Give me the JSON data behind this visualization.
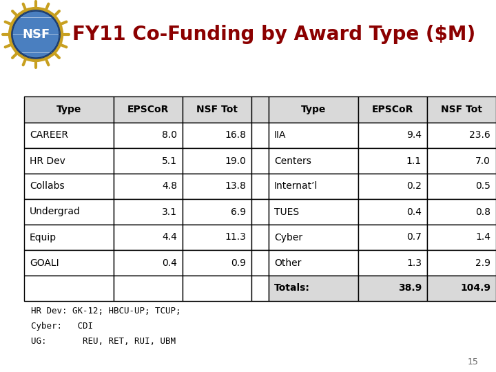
{
  "title": "FY11 Co-Funding by Award Type ($M)",
  "title_color": "#8B0000",
  "background_color": "#FFFFFF",
  "left_table": {
    "headers": [
      "Type",
      "EPSCoR",
      "NSF Tot"
    ],
    "rows": [
      [
        "CAREER",
        "8.0",
        "16.8"
      ],
      [
        "HR Dev",
        "5.1",
        "19.0"
      ],
      [
        "Collabs",
        "4.8",
        "13.8"
      ],
      [
        "Undergrad",
        "3.1",
        "6.9"
      ],
      [
        "Equip",
        "4.4",
        "11.3"
      ],
      [
        "GOALI",
        "0.4",
        "0.9"
      ],
      [
        "",
        "",
        ""
      ]
    ]
  },
  "gap_col": {
    "headers": [
      ""
    ],
    "rows": [
      [
        ""
      ],
      [
        ""
      ],
      [
        ""
      ],
      [
        ""
      ],
      [
        ""
      ],
      [
        ""
      ],
      [
        "Totals:"
      ]
    ]
  },
  "right_table": {
    "headers": [
      "Type",
      "EPSCoR",
      "NSF Tot"
    ],
    "rows": [
      [
        "IIA",
        "9.4",
        "23.6"
      ],
      [
        "Centers",
        "1.1",
        "7.0"
      ],
      [
        "Internat’l",
        "0.2",
        "0.5"
      ],
      [
        "TUES",
        "0.4",
        "0.8"
      ],
      [
        "Cyber",
        "0.7",
        "1.4"
      ],
      [
        "Other",
        "1.3",
        "2.9"
      ],
      [
        "Totals:",
        "38.9",
        "104.9"
      ]
    ]
  },
  "footnotes": [
    "HR Dev: GK-12; HBCU-UP; TCUP;",
    "Cyber:   CDI",
    "UG:       REU, RET, RUI, UBM"
  ],
  "page_number": "15",
  "header_bg": "#D9D9D9",
  "totals_bg": "#D9D9D9",
  "row_bg": "#FFFFFF",
  "border_color": "#000000",
  "header_font_size": 10,
  "cell_font_size": 10,
  "footnote_font_size": 9,
  "title_font_size": 20
}
